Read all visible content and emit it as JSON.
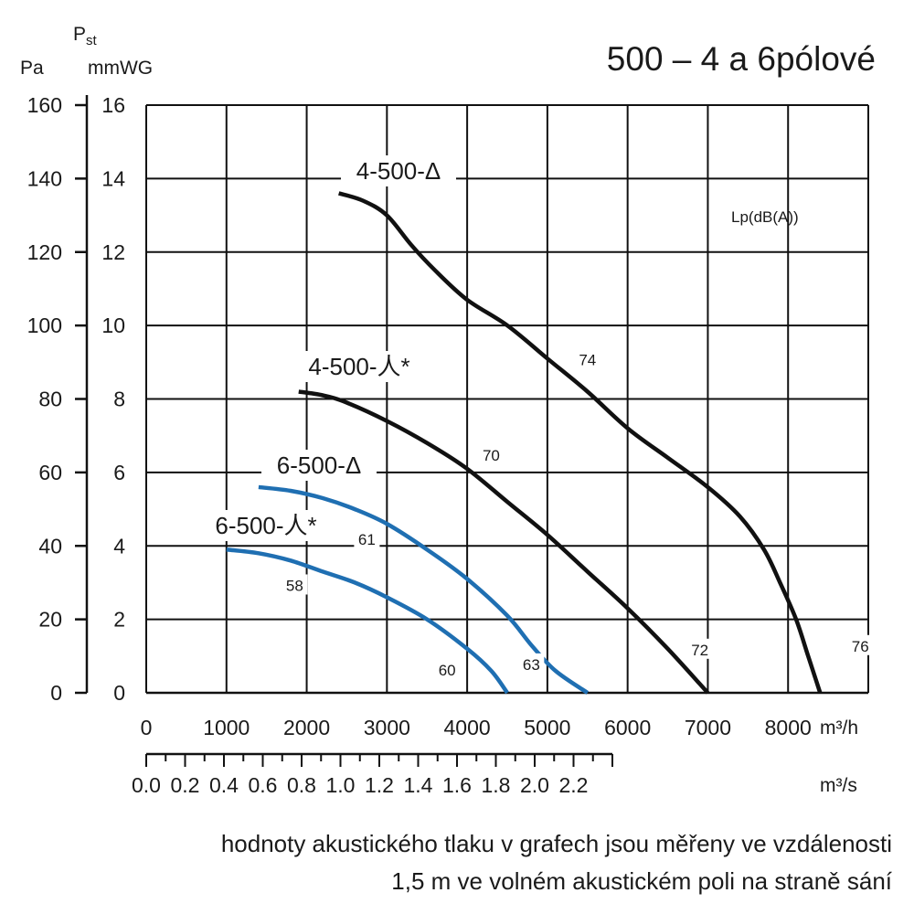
{
  "chart_data": {
    "type": "line",
    "title": "500 – 4 a 6pólové",
    "axes": {
      "y_left_pa": {
        "label": "Pa",
        "ticks": [
          0,
          20,
          40,
          60,
          80,
          100,
          120,
          140,
          160
        ],
        "ylim": [
          0,
          160
        ]
      },
      "y_mmwg": {
        "label_main": "P",
        "label_sub": "st",
        "unit": "mmWG",
        "ticks": [
          0,
          2,
          4,
          6,
          8,
          10,
          12,
          14,
          16
        ],
        "ylim": [
          0,
          16
        ]
      },
      "x_m3h": {
        "unit": "m³/h",
        "ticks": [
          0,
          1000,
          2000,
          3000,
          4000,
          5000,
          6000,
          7000,
          8000
        ],
        "xlim": [
          0,
          9000
        ]
      },
      "x_m3s": {
        "unit": "m³/s",
        "ticks": [
          "0.0",
          "0.2",
          "0.4",
          "0.6",
          "0.8",
          "1.0",
          "1.2",
          "1.4",
          "1.6",
          "1.8",
          "2.0",
          "2.2"
        ]
      }
    },
    "grid": true,
    "sound_label": "Lp(dB(A))",
    "series": [
      {
        "name": "4-500-Δ",
        "color": "#111111",
        "points": [
          [
            2400,
            13.6
          ],
          [
            2700,
            13.4
          ],
          [
            3000,
            13.0
          ],
          [
            3300,
            12.2
          ],
          [
            3600,
            11.5
          ],
          [
            4000,
            10.7
          ],
          [
            4500,
            10.0
          ],
          [
            5000,
            9.1
          ],
          [
            5500,
            8.2
          ],
          [
            6000,
            7.2
          ],
          [
            6500,
            6.4
          ],
          [
            7000,
            5.6
          ],
          [
            7400,
            4.8
          ],
          [
            7700,
            3.9
          ],
          [
            7900,
            3.0
          ],
          [
            8100,
            2.0
          ],
          [
            8250,
            1.0
          ],
          [
            8400,
            0
          ]
        ],
        "db_labels": [
          {
            "text": "74",
            "x": 5500,
            "y": 9.0
          },
          {
            "text": "76",
            "x": 8900,
            "y": 1.2
          }
        ]
      },
      {
        "name": "4-500-人*",
        "color": "#111111",
        "points": [
          [
            1900,
            8.2
          ],
          [
            2200,
            8.1
          ],
          [
            2500,
            7.9
          ],
          [
            3000,
            7.4
          ],
          [
            3500,
            6.8
          ],
          [
            4000,
            6.1
          ],
          [
            4500,
            5.2
          ],
          [
            5000,
            4.3
          ],
          [
            5500,
            3.3
          ],
          [
            6000,
            2.3
          ],
          [
            6500,
            1.2
          ],
          [
            7000,
            0
          ]
        ],
        "db_labels": [
          {
            "text": "70",
            "x": 4300,
            "y": 6.4
          },
          {
            "text": "72",
            "x": 6900,
            "y": 1.1
          }
        ]
      },
      {
        "name": "6-500-Δ",
        "color": "#1f6fb2",
        "points": [
          [
            1400,
            5.6
          ],
          [
            1800,
            5.5
          ],
          [
            2200,
            5.3
          ],
          [
            2600,
            5.0
          ],
          [
            3000,
            4.6
          ],
          [
            3500,
            3.9
          ],
          [
            4000,
            3.1
          ],
          [
            4500,
            2.1
          ],
          [
            4800,
            1.3
          ],
          [
            5100,
            0.6
          ],
          [
            5500,
            0
          ]
        ],
        "db_labels": [
          {
            "text": "61",
            "x": 2750,
            "y": 4.1
          },
          {
            "text": "63",
            "x": 4800,
            "y": 0.7
          }
        ]
      },
      {
        "name": "6-500-人*",
        "color": "#1f6fb2",
        "points": [
          [
            1000,
            3.9
          ],
          [
            1400,
            3.8
          ],
          [
            1800,
            3.6
          ],
          [
            2200,
            3.3
          ],
          [
            2600,
            3.0
          ],
          [
            3000,
            2.6
          ],
          [
            3500,
            2.0
          ],
          [
            4000,
            1.2
          ],
          [
            4300,
            0.6
          ],
          [
            4500,
            0
          ]
        ],
        "db_labels": [
          {
            "text": "58",
            "x": 1850,
            "y": 2.85
          },
          {
            "text": "60",
            "x": 3750,
            "y": 0.55
          }
        ]
      }
    ]
  },
  "footnote": {
    "line1": "hodnoty akustického tlaku v grafech jsou měřeny ve vzdálenosti",
    "line2": "1,5 m ve volném akustickém poli na straně sání"
  }
}
